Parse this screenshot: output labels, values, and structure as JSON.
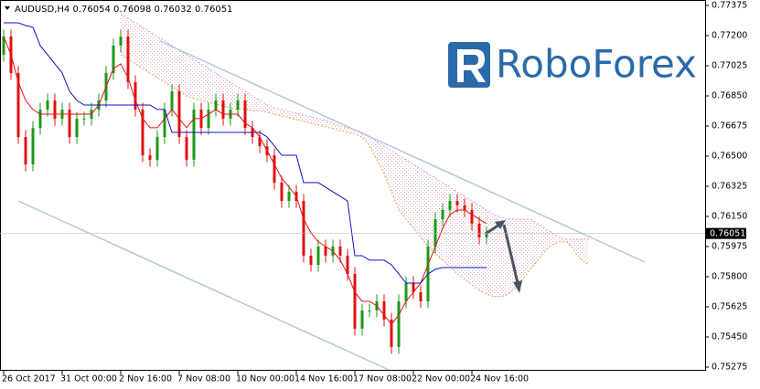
{
  "chart_data": {
    "type": "candlestick",
    "title": "AUDUSD,H4 0.76054 0.76098 0.76032 0.76051",
    "brand": "RoboForex",
    "current_price": 0.76051,
    "up_color": "#1a9a1a",
    "down_color": "#e01010",
    "ylim": [
      0.75275,
      0.77375
    ],
    "yticks": [
      0.77375,
      {
        "value": 0.772,
        "label": "0.77200"
      },
      0.77025,
      {
        "value": 0.7685,
        "label": "0.76850"
      },
      0.76675,
      {
        "value": 0.765,
        "label": "0.76500"
      },
      0.76325,
      {
        "value": 0.7615,
        "label": "0.76150"
      },
      0.75975,
      {
        "value": 0.758,
        "label": "0.75800"
      },
      0.75625,
      {
        "value": 0.7545,
        "label": "0.75450"
      },
      0.75275
    ],
    "categories": [
      "26 Oct 2017",
      null,
      null,
      null,
      null,
      null,
      null,
      null,
      "31 Oct 00:00",
      null,
      null,
      null,
      null,
      null,
      null,
      null,
      "2 Nov 16:00",
      null,
      null,
      null,
      null,
      null,
      null,
      null,
      "7 Nov 08:00",
      null,
      null,
      null,
      null,
      null,
      null,
      null,
      "10 Nov 00:00",
      null,
      null,
      null,
      null,
      null,
      null,
      null,
      "14 Nov 16:00",
      null,
      null,
      null,
      null,
      null,
      null,
      null,
      "17 Nov 08:00",
      null,
      null,
      null,
      null,
      null,
      null,
      null,
      "22 Nov 00:00",
      null,
      null,
      null,
      null,
      null,
      null,
      null,
      "24 Nov 16:00",
      null,
      null,
      null,
      null,
      null,
      null,
      null,
      null,
      null,
      null,
      null,
      null,
      null,
      null,
      null,
      null
    ],
    "open": [
      0.77089,
      0.77195,
      0.76983,
      0.76611,
      0.76452,
      0.76664,
      0.7677,
      0.76823,
      0.76717,
      0.7677,
      0.76611,
      0.76717,
      0.76717,
      0.7677,
      0.76823,
      0.76983,
      0.77142,
      0.77195,
      0.7693,
      0.7677,
      0.76505,
      0.76479,
      0.76611,
      0.7677,
      0.76877,
      0.76611,
      0.76479,
      0.7677,
      0.76664,
      0.7677,
      0.76823,
      0.76717,
      0.7677,
      0.76823,
      0.76664,
      0.76611,
      0.76558,
      0.76505,
      0.76346,
      0.7624,
      0.76293,
      0.7624,
      0.75922,
      0.75869,
      0.75975,
      0.75922,
      0.75975,
      0.75922,
      0.75816,
      0.75498,
      0.75604,
      0.75604,
      0.75657,
      0.75551,
      0.75392,
      0.75657,
      0.75763,
      0.7571,
      0.75657,
      0.75975,
      0.76134,
      0.76187,
      0.7624,
      0.76214,
      0.76187,
      0.76108,
      0.76028,
      null,
      null,
      null,
      null,
      null,
      null,
      null,
      null,
      null,
      null,
      null,
      null,
      null,
      null
    ],
    "high": [
      0.77235,
      0.77235,
      0.77023,
      0.76651,
      0.76704,
      0.7681,
      0.76863,
      0.76863,
      0.7681,
      0.7681,
      0.76757,
      0.76757,
      0.7681,
      0.76863,
      0.77023,
      0.77182,
      0.77235,
      0.77235,
      0.7697,
      0.7681,
      0.76545,
      0.76651,
      0.7681,
      0.76917,
      0.76917,
      0.76651,
      0.7681,
      0.7681,
      0.7681,
      0.76863,
      0.76863,
      0.7681,
      0.76863,
      0.76863,
      0.76704,
      0.76651,
      0.76598,
      0.76545,
      0.76386,
      0.76333,
      0.76333,
      0.7628,
      0.75962,
      0.76015,
      0.76015,
      0.76015,
      0.76015,
      0.75962,
      0.75856,
      0.75644,
      0.75644,
      0.75697,
      0.75697,
      0.75591,
      0.75697,
      0.75803,
      0.75803,
      0.7575,
      0.76015,
      0.76174,
      0.76227,
      0.7628,
      0.7628,
      0.76254,
      0.76227,
      0.76148,
      0.76091,
      null,
      null,
      null,
      null,
      null,
      null,
      null,
      null,
      null,
      null,
      null,
      null,
      null,
      null
    ],
    "low": [
      0.77049,
      0.76943,
      0.76571,
      0.76412,
      0.76412,
      0.76624,
      0.7673,
      0.76677,
      0.76677,
      0.76571,
      0.76571,
      0.76677,
      0.76677,
      0.7673,
      0.76783,
      0.76943,
      0.77102,
      0.7689,
      0.7673,
      0.76465,
      0.76439,
      0.76439,
      0.76571,
      0.7673,
      0.76571,
      0.76439,
      0.76439,
      0.76624,
      0.76624,
      0.7673,
      0.76677,
      0.76677,
      0.7673,
      0.76624,
      0.76571,
      0.76518,
      0.76465,
      0.76306,
      0.762,
      0.762,
      0.762,
      0.75882,
      0.75829,
      0.75829,
      0.75882,
      0.75882,
      0.75882,
      0.75776,
      0.75458,
      0.75458,
      0.75564,
      0.75564,
      0.75511,
      0.75352,
      0.75352,
      0.75617,
      0.7567,
      0.75617,
      0.75617,
      0.75935,
      0.76094,
      0.76147,
      0.76174,
      0.76147,
      0.76068,
      0.75988,
      0.75988,
      null,
      null,
      null,
      null,
      null,
      null,
      null,
      null,
      null,
      null,
      null,
      null,
      null,
      null
    ],
    "close": [
      0.77195,
      0.76983,
      0.76611,
      0.76452,
      0.76664,
      0.7677,
      0.76823,
      0.76717,
      0.7677,
      0.76611,
      0.76717,
      0.76717,
      0.7677,
      0.76823,
      0.76983,
      0.77142,
      0.77195,
      0.7693,
      0.7677,
      0.76505,
      0.76479,
      0.76611,
      0.7677,
      0.76877,
      0.76611,
      0.76479,
      0.7677,
      0.76664,
      0.7677,
      0.76823,
      0.76717,
      0.7677,
      0.76823,
      0.76664,
      0.76611,
      0.76558,
      0.76505,
      0.76346,
      0.7624,
      0.76293,
      0.7624,
      0.75922,
      0.75869,
      0.75975,
      0.75922,
      0.75975,
      0.75922,
      0.75816,
      0.75498,
      0.75604,
      0.75604,
      0.75657,
      0.75551,
      0.75392,
      0.75657,
      0.75763,
      0.7571,
      0.75657,
      0.75975,
      0.76134,
      0.76187,
      0.7624,
      0.76214,
      0.76187,
      0.76108,
      0.76028,
      0.76051,
      null,
      null,
      null,
      null,
      null,
      null,
      null,
      null,
      null,
      null,
      null,
      null,
      null,
      null
    ],
    "lines": [
      {
        "color": "#e81010",
        "width": 1,
        "values": [
          0.77195,
          0.77089,
          0.7693,
          0.76824,
          0.76771,
          0.76744,
          0.76744,
          0.76744,
          0.76744,
          0.76744,
          0.76744,
          0.76744,
          0.76744,
          0.76797,
          0.76903,
          0.77009,
          0.77036,
          0.76956,
          0.76824,
          0.76718,
          0.76665,
          0.76665,
          0.76718,
          0.76771,
          0.76718,
          0.76665,
          0.76718,
          0.76718,
          0.76744,
          0.76771,
          0.76744,
          0.76744,
          0.76744,
          0.76691,
          0.76665,
          0.76612,
          0.76532,
          0.76452,
          0.76373,
          0.7632,
          0.76267,
          0.76134,
          0.76055,
          0.76002,
          0.75975,
          0.75949,
          0.75896,
          0.75816,
          0.7571,
          0.75657,
          0.75657,
          0.75631,
          0.75577,
          0.75524,
          0.75577,
          0.75657,
          0.7571,
          0.75763,
          0.75869,
          0.75975,
          0.76081,
          0.76161,
          0.76187,
          0.76187,
          0.76161,
          0.76134,
          0.76108,
          null,
          null,
          null,
          null,
          null,
          null,
          null,
          null,
          null,
          null,
          null,
          null,
          null,
          null
        ]
      },
      {
        "color": "#1010c8",
        "width": 1,
        "values": [
          0.77274,
          0.77274,
          0.77274,
          0.77259,
          0.77248,
          0.77142,
          0.77089,
          0.77036,
          0.76983,
          0.76877,
          0.76824,
          0.76797,
          0.76797,
          0.76797,
          0.76797,
          0.76797,
          0.76797,
          0.76797,
          0.76797,
          0.76797,
          0.76797,
          0.76771,
          0.76771,
          0.76638,
          0.76638,
          0.76638,
          0.76638,
          0.76638,
          0.76638,
          0.76638,
          0.76638,
          0.76638,
          0.76638,
          0.76638,
          0.76638,
          0.76638,
          0.76612,
          0.76559,
          0.76505,
          0.76505,
          0.76505,
          0.76346,
          0.76346,
          0.76346,
          0.7632,
          0.76293,
          0.76267,
          0.7624,
          0.75922,
          0.75922,
          0.75896,
          0.75896,
          0.75896,
          0.75869,
          0.75816,
          0.75763,
          0.75763,
          0.75763,
          0.75816,
          0.75843,
          0.75853,
          0.75853,
          0.75853,
          0.75853,
          0.75853,
          0.75853,
          0.75853,
          null,
          null,
          null,
          null,
          null,
          null,
          null,
          null,
          null,
          null,
          null,
          null,
          null,
          null
        ]
      }
    ],
    "cloud": [
      {
        "color": "#f0a050",
        "values": [
          null,
          null,
          null,
          null,
          null,
          null,
          null,
          null,
          null,
          null,
          null,
          null,
          null,
          null,
          null,
          null,
          0.77089,
          0.77062,
          0.77036,
          0.77009,
          0.76983,
          0.76956,
          0.7693,
          0.76903,
          0.76877,
          0.7685,
          0.76834,
          0.76824,
          0.76813,
          0.76802,
          0.76792,
          0.76781,
          0.76771,
          0.76771,
          0.76765,
          0.7676,
          0.76755,
          0.76744,
          0.76734,
          0.76723,
          0.76712,
          0.76702,
          0.76691,
          0.7668,
          0.7667,
          0.76659,
          0.76649,
          0.76638,
          0.76627,
          0.76612,
          0.76559,
          0.76479,
          0.76399,
          0.76293,
          0.76187,
          0.76134,
          0.76081,
          0.76028,
          0.75975,
          0.75933,
          0.75896,
          0.75859,
          0.75816,
          0.75784,
          0.75752,
          0.75721,
          0.75699,
          0.75684,
          0.75684,
          0.75699,
          0.75737,
          0.7579,
          0.75843,
          0.75896,
          0.75949,
          0.75986,
          0.76002,
          0.76002,
          0.75949,
          0.75896,
          0.75869
        ]
      },
      {
        "color": "#d8a0e0",
        "values": [
          null,
          null,
          null,
          null,
          null,
          null,
          null,
          null,
          null,
          null,
          null,
          null,
          null,
          null,
          null,
          null,
          0.77327,
          0.77301,
          0.77274,
          0.77248,
          0.77221,
          0.77195,
          0.77168,
          0.77142,
          0.77115,
          0.77089,
          0.77062,
          0.77036,
          0.77009,
          0.76983,
          0.76956,
          0.7693,
          0.76903,
          0.76877,
          0.7685,
          0.76824,
          0.76797,
          0.76781,
          0.76771,
          0.7676,
          0.76749,
          0.76739,
          0.76728,
          0.76718,
          0.76707,
          0.76691,
          0.76675,
          0.76665,
          0.76654,
          0.76638,
          0.76612,
          0.76585,
          0.76559,
          0.76532,
          0.76505,
          0.76479,
          0.76452,
          0.76426,
          0.76399,
          0.76373,
          0.76346,
          0.7632,
          0.76293,
          0.76267,
          0.7624,
          0.76214,
          0.76187,
          0.76161,
          0.76145,
          0.76134,
          0.76134,
          0.76134,
          0.76134,
          0.76108,
          0.76081,
          0.76055,
          0.76028,
          0.76018,
          0.76018,
          0.76018,
          0.76018
        ]
      }
    ]
  }
}
